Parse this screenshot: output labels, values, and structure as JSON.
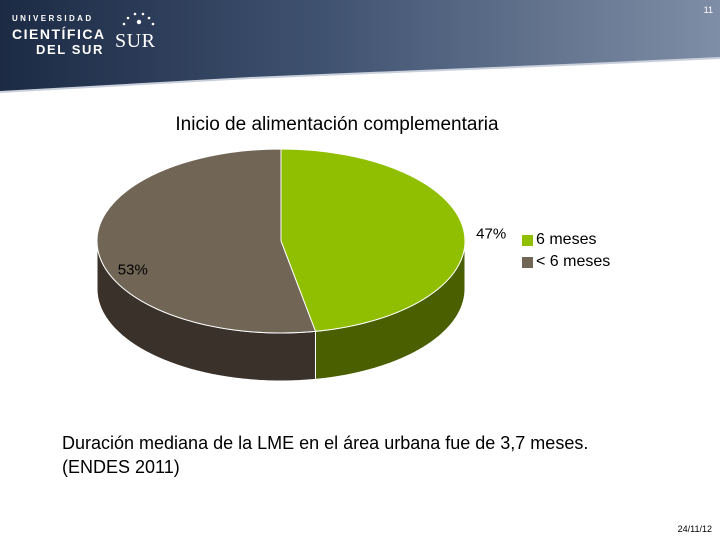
{
  "header": {
    "logo": {
      "line1": "UNIVERSIDAD",
      "line2": "CIENTÍFICA",
      "line3": "DEL SUR",
      "mark": "SUR"
    },
    "slide_number": "11",
    "colors": {
      "band": "#1f2f4d",
      "band_light": "#5c6f8f"
    }
  },
  "chart_data": {
    "type": "pie",
    "title": "Inicio de alimentación complementaria",
    "slices": [
      {
        "name": "6 meses",
        "value": 47,
        "label": "47%",
        "color": "#8fbf00",
        "side_color": "#4a5f00"
      },
      {
        "name": "< 6 meses",
        "value": 53,
        "label": "53%",
        "color": "#716556",
        "side_color": "#3a312a"
      }
    ],
    "legend": {
      "placement": "right",
      "entries": [
        "6 meses",
        "< 6 meses"
      ]
    }
  },
  "caption": {
    "line1": "Duración mediana de la LME en el área urbana fue de 3,7 meses.",
    "line2": "(ENDES 2011)"
  },
  "footer": {
    "date": "24/11/12"
  }
}
